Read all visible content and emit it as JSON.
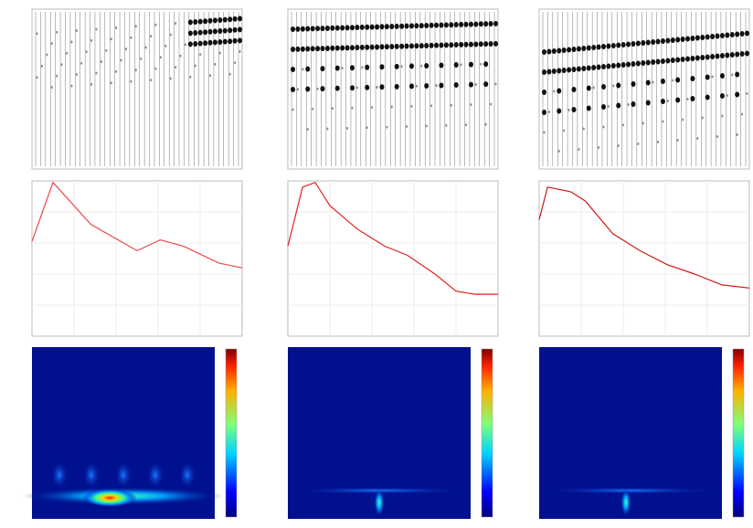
{
  "chart_data": [
    {
      "type": "line",
      "x": [
        0,
        10,
        28,
        50,
        61,
        72,
        89,
        100
      ],
      "xlim": [
        0,
        100
      ],
      "ylim": [
        0,
        100
      ],
      "grid": true,
      "series": [
        {
          "color": "#e8474a",
          "values": [
            61,
            99,
            72,
            55,
            62,
            58,
            47,
            44
          ]
        }
      ]
    },
    {
      "type": "line",
      "x": [
        0,
        7,
        13,
        20,
        33,
        46,
        57,
        70,
        80,
        89,
        100
      ],
      "xlim": [
        0,
        100
      ],
      "ylim": [
        0,
        100
      ],
      "grid": true,
      "series": [
        {
          "color": "#e02020",
          "values": [
            58,
            96,
            99,
            84,
            69,
            58,
            52,
            40,
            29,
            27,
            27
          ]
        }
      ]
    },
    {
      "type": "line",
      "x": [
        0,
        4,
        15,
        22,
        35,
        48,
        61,
        74,
        87,
        100
      ],
      "xlim": [
        0,
        100
      ],
      "ylim": [
        0,
        100
      ],
      "grid": true,
      "series": [
        {
          "color": "#d01818",
          "values": [
            75,
            96,
            93,
            87,
            66,
            55,
            46,
            40,
            33,
            31
          ]
        }
      ]
    }
  ]
}
